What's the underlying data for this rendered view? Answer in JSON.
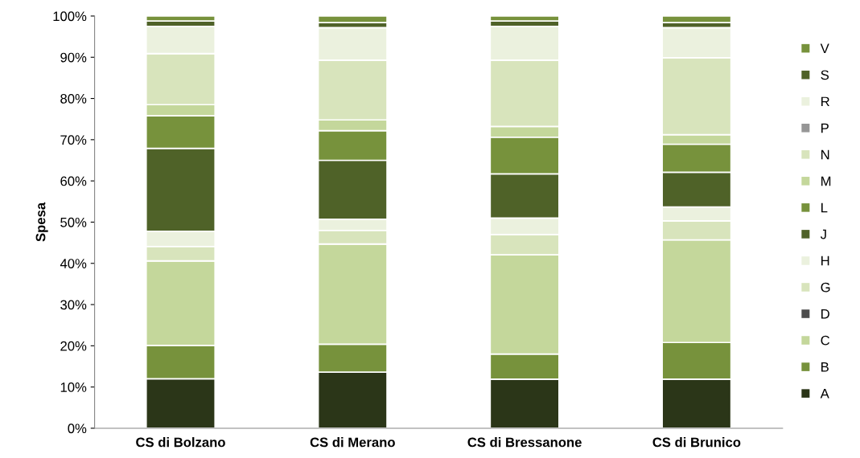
{
  "chart_data": {
    "type": "bar",
    "stacked": true,
    "ylabel": "Spesa",
    "categories": [
      "CS di Bolzano",
      "CS di Merano",
      "CS di Bressanone",
      "CS di Brunico"
    ],
    "ylim": [
      0,
      100
    ],
    "yticks": [
      {
        "value": 0,
        "label": "0%"
      },
      {
        "value": 10,
        "label": "10%"
      },
      {
        "value": 20,
        "label": "20%"
      },
      {
        "value": 30,
        "label": "30%"
      },
      {
        "value": 40,
        "label": "40%"
      },
      {
        "value": 50,
        "label": "50%"
      },
      {
        "value": 60,
        "label": "60%"
      },
      {
        "value": 70,
        "label": "70%"
      },
      {
        "value": 80,
        "label": "80%"
      },
      {
        "value": 90,
        "label": "90%"
      },
      {
        "value": 100,
        "label": "100%"
      }
    ],
    "grid": false,
    "legend": "right",
    "series": [
      {
        "name": "A",
        "color": "#2b3618",
        "values": [
          12.0,
          13.6,
          11.9,
          11.9
        ]
      },
      {
        "name": "B",
        "color": "#77923c",
        "values": [
          8.1,
          6.8,
          6.1,
          8.9
        ]
      },
      {
        "name": "C",
        "color": "#c4d79b",
        "values": [
          20.5,
          24.3,
          24.1,
          24.9
        ]
      },
      {
        "name": "D",
        "color": "#4d4d4d",
        "values": [
          0,
          0,
          0,
          0
        ]
      },
      {
        "name": "G",
        "color": "#d8e4bc",
        "values": [
          3.5,
          3.3,
          4.9,
          4.6
        ]
      },
      {
        "name": "H",
        "color": "#ebf1de",
        "values": [
          3.7,
          2.7,
          4.0,
          3.4
        ]
      },
      {
        "name": "J",
        "color": "#4f6228",
        "values": [
          20.1,
          14.3,
          10.7,
          8.4
        ]
      },
      {
        "name": "L",
        "color": "#77923c",
        "values": [
          7.9,
          7.2,
          8.9,
          6.8
        ]
      },
      {
        "name": "M",
        "color": "#c4d79b",
        "values": [
          2.7,
          2.6,
          2.6,
          2.3
        ]
      },
      {
        "name": "N",
        "color": "#d8e4bc",
        "values": [
          12.4,
          14.5,
          16.1,
          18.7
        ]
      },
      {
        "name": "P",
        "color": "#969696",
        "values": [
          0,
          0,
          0,
          0
        ]
      },
      {
        "name": "R",
        "color": "#ebf1de",
        "values": [
          6.6,
          7.9,
          8.2,
          7.3
        ]
      },
      {
        "name": "S",
        "color": "#4f6228",
        "values": [
          1.3,
          1.2,
          1.3,
          1.2
        ]
      },
      {
        "name": "V",
        "color": "#77923c",
        "values": [
          1.2,
          1.6,
          1.2,
          1.6
        ]
      }
    ]
  }
}
